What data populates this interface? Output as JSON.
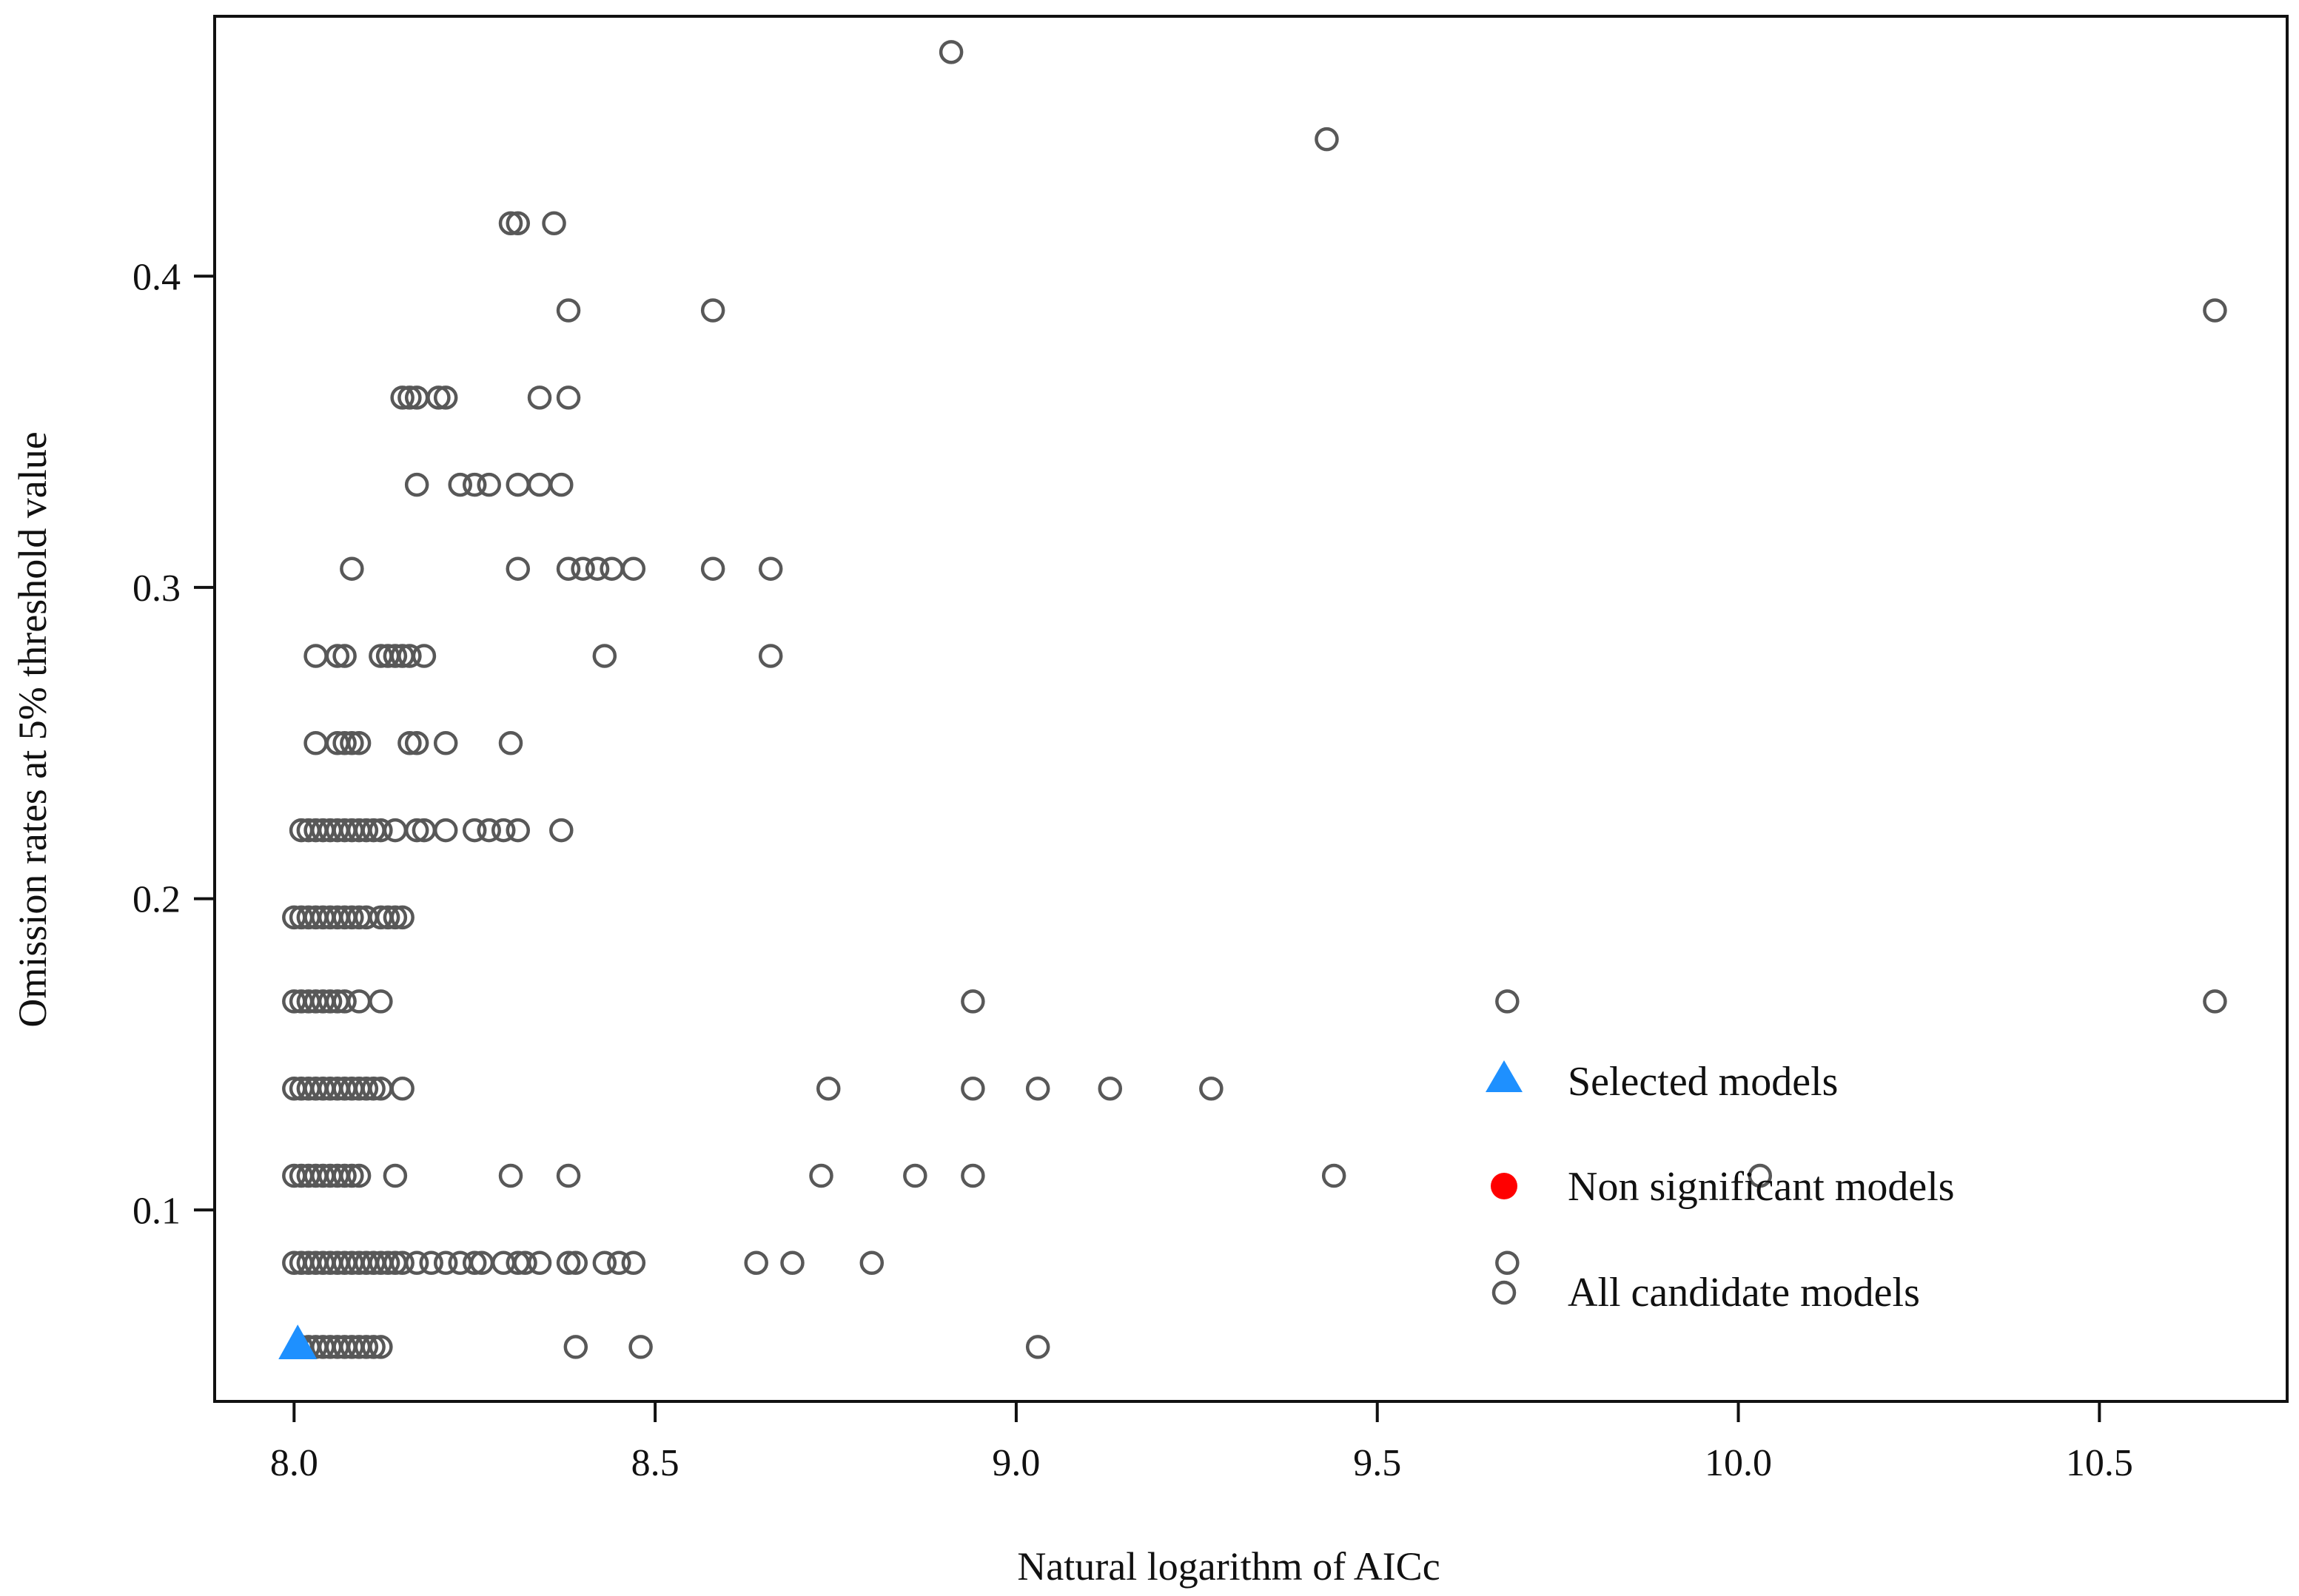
{
  "chart_data": {
    "type": "scatter",
    "title": "",
    "xlabel": "Natural logarithm of AICc",
    "ylabel": "Omission rates at 5% threshold value",
    "xlim": [
      7.89,
      10.76
    ],
    "ylim": [
      0.0385,
      0.4835
    ],
    "x_ticks": [
      {
        "value": 8.0,
        "label": "8.0"
      },
      {
        "value": 8.5,
        "label": "8.5"
      },
      {
        "value": 9.0,
        "label": "9.0"
      },
      {
        "value": 9.5,
        "label": "9.5"
      },
      {
        "value": 10.0,
        "label": "10.0"
      },
      {
        "value": 10.5,
        "label": "10.5"
      }
    ],
    "y_ticks": [
      {
        "value": 0.1,
        "label": "0.1"
      },
      {
        "value": 0.2,
        "label": "0.2"
      },
      {
        "value": 0.3,
        "label": "0.3"
      },
      {
        "value": 0.4,
        "label": "0.4"
      }
    ],
    "legend": {
      "position": "bottom-right",
      "entries": [
        {
          "label": "Selected models",
          "marker": "triangle",
          "color": "#1e90ff"
        },
        {
          "label": "Non significant models",
          "marker": "filled-circle",
          "color": "#ff0000"
        },
        {
          "label": "All candidate models",
          "marker": "open-circle",
          "color": "#585858"
        }
      ]
    },
    "colors": {
      "candidate": "#585858",
      "selected": "#1e90ff",
      "non_significant": "#ff0000"
    },
    "series": [
      {
        "name": "All candidate models",
        "marker": "open-circle",
        "points": [
          [
            8.91,
            0.472
          ],
          [
            9.43,
            0.444
          ],
          [
            8.3,
            0.417
          ],
          [
            8.31,
            0.417
          ],
          [
            8.36,
            0.417
          ],
          [
            8.38,
            0.389
          ],
          [
            8.58,
            0.389
          ],
          [
            10.66,
            0.389
          ],
          [
            8.15,
            0.361
          ],
          [
            8.16,
            0.361
          ],
          [
            8.17,
            0.361
          ],
          [
            8.2,
            0.361
          ],
          [
            8.21,
            0.361
          ],
          [
            8.34,
            0.361
          ],
          [
            8.38,
            0.361
          ],
          [
            8.17,
            0.333
          ],
          [
            8.23,
            0.333
          ],
          [
            8.25,
            0.333
          ],
          [
            8.27,
            0.333
          ],
          [
            8.31,
            0.333
          ],
          [
            8.34,
            0.333
          ],
          [
            8.37,
            0.333
          ],
          [
            8.08,
            0.306
          ],
          [
            8.31,
            0.306
          ],
          [
            8.38,
            0.306
          ],
          [
            8.4,
            0.306
          ],
          [
            8.42,
            0.306
          ],
          [
            8.44,
            0.306
          ],
          [
            8.47,
            0.306
          ],
          [
            8.58,
            0.306
          ],
          [
            8.66,
            0.306
          ],
          [
            8.03,
            0.278
          ],
          [
            8.06,
            0.278
          ],
          [
            8.07,
            0.278
          ],
          [
            8.12,
            0.278
          ],
          [
            8.13,
            0.278
          ],
          [
            8.14,
            0.278
          ],
          [
            8.15,
            0.278
          ],
          [
            8.16,
            0.278
          ],
          [
            8.18,
            0.278
          ],
          [
            8.43,
            0.278
          ],
          [
            8.66,
            0.278
          ],
          [
            8.03,
            0.25
          ],
          [
            8.06,
            0.25
          ],
          [
            8.07,
            0.25
          ],
          [
            8.08,
            0.25
          ],
          [
            8.09,
            0.25
          ],
          [
            8.16,
            0.25
          ],
          [
            8.17,
            0.25
          ],
          [
            8.21,
            0.25
          ],
          [
            8.3,
            0.25
          ],
          [
            8.01,
            0.222
          ],
          [
            8.02,
            0.222
          ],
          [
            8.03,
            0.222
          ],
          [
            8.04,
            0.222
          ],
          [
            8.05,
            0.222
          ],
          [
            8.06,
            0.222
          ],
          [
            8.07,
            0.222
          ],
          [
            8.08,
            0.222
          ],
          [
            8.09,
            0.222
          ],
          [
            8.1,
            0.222
          ],
          [
            8.11,
            0.222
          ],
          [
            8.12,
            0.222
          ],
          [
            8.14,
            0.222
          ],
          [
            8.17,
            0.222
          ],
          [
            8.18,
            0.222
          ],
          [
            8.21,
            0.222
          ],
          [
            8.25,
            0.222
          ],
          [
            8.27,
            0.222
          ],
          [
            8.29,
            0.222
          ],
          [
            8.31,
            0.222
          ],
          [
            8.37,
            0.222
          ],
          [
            8.0,
            0.194
          ],
          [
            8.01,
            0.194
          ],
          [
            8.02,
            0.194
          ],
          [
            8.03,
            0.194
          ],
          [
            8.04,
            0.194
          ],
          [
            8.05,
            0.194
          ],
          [
            8.06,
            0.194
          ],
          [
            8.07,
            0.194
          ],
          [
            8.08,
            0.194
          ],
          [
            8.09,
            0.194
          ],
          [
            8.1,
            0.194
          ],
          [
            8.12,
            0.194
          ],
          [
            8.13,
            0.194
          ],
          [
            8.14,
            0.194
          ],
          [
            8.15,
            0.194
          ],
          [
            8.0,
            0.167
          ],
          [
            8.01,
            0.167
          ],
          [
            8.02,
            0.167
          ],
          [
            8.03,
            0.167
          ],
          [
            8.04,
            0.167
          ],
          [
            8.05,
            0.167
          ],
          [
            8.06,
            0.167
          ],
          [
            8.07,
            0.167
          ],
          [
            8.09,
            0.167
          ],
          [
            8.12,
            0.167
          ],
          [
            8.94,
            0.167
          ],
          [
            9.68,
            0.167
          ],
          [
            10.66,
            0.167
          ],
          [
            8.0,
            0.139
          ],
          [
            8.01,
            0.139
          ],
          [
            8.02,
            0.139
          ],
          [
            8.03,
            0.139
          ],
          [
            8.04,
            0.139
          ],
          [
            8.05,
            0.139
          ],
          [
            8.06,
            0.139
          ],
          [
            8.07,
            0.139
          ],
          [
            8.08,
            0.139
          ],
          [
            8.09,
            0.139
          ],
          [
            8.1,
            0.139
          ],
          [
            8.11,
            0.139
          ],
          [
            8.12,
            0.139
          ],
          [
            8.15,
            0.139
          ],
          [
            8.74,
            0.139
          ],
          [
            8.94,
            0.139
          ],
          [
            9.03,
            0.139
          ],
          [
            9.13,
            0.139
          ],
          [
            9.27,
            0.139
          ],
          [
            8.0,
            0.111
          ],
          [
            8.01,
            0.111
          ],
          [
            8.02,
            0.111
          ],
          [
            8.03,
            0.111
          ],
          [
            8.04,
            0.111
          ],
          [
            8.05,
            0.111
          ],
          [
            8.06,
            0.111
          ],
          [
            8.07,
            0.111
          ],
          [
            8.08,
            0.111
          ],
          [
            8.09,
            0.111
          ],
          [
            8.14,
            0.111
          ],
          [
            8.3,
            0.111
          ],
          [
            8.38,
            0.111
          ],
          [
            8.73,
            0.111
          ],
          [
            8.86,
            0.111
          ],
          [
            8.94,
            0.111
          ],
          [
            9.44,
            0.111
          ],
          [
            10.03,
            0.111
          ],
          [
            8.0,
            0.083
          ],
          [
            8.01,
            0.083
          ],
          [
            8.02,
            0.083
          ],
          [
            8.03,
            0.083
          ],
          [
            8.04,
            0.083
          ],
          [
            8.05,
            0.083
          ],
          [
            8.06,
            0.083
          ],
          [
            8.07,
            0.083
          ],
          [
            8.08,
            0.083
          ],
          [
            8.09,
            0.083
          ],
          [
            8.1,
            0.083
          ],
          [
            8.11,
            0.083
          ],
          [
            8.12,
            0.083
          ],
          [
            8.13,
            0.083
          ],
          [
            8.14,
            0.083
          ],
          [
            8.15,
            0.083
          ],
          [
            8.17,
            0.083
          ],
          [
            8.19,
            0.083
          ],
          [
            8.21,
            0.083
          ],
          [
            8.23,
            0.083
          ],
          [
            8.25,
            0.083
          ],
          [
            8.26,
            0.083
          ],
          [
            8.29,
            0.083
          ],
          [
            8.31,
            0.083
          ],
          [
            8.32,
            0.083
          ],
          [
            8.34,
            0.083
          ],
          [
            8.38,
            0.083
          ],
          [
            8.39,
            0.083
          ],
          [
            8.43,
            0.083
          ],
          [
            8.45,
            0.083
          ],
          [
            8.47,
            0.083
          ],
          [
            8.64,
            0.083
          ],
          [
            8.69,
            0.083
          ],
          [
            8.8,
            0.083
          ],
          [
            9.68,
            0.083
          ],
          [
            8.01,
            0.056
          ],
          [
            8.02,
            0.056
          ],
          [
            8.03,
            0.056
          ],
          [
            8.04,
            0.056
          ],
          [
            8.05,
            0.056
          ],
          [
            8.06,
            0.056
          ],
          [
            8.07,
            0.056
          ],
          [
            8.08,
            0.056
          ],
          [
            8.09,
            0.056
          ],
          [
            8.1,
            0.056
          ],
          [
            8.11,
            0.056
          ],
          [
            8.12,
            0.056
          ],
          [
            8.39,
            0.056
          ],
          [
            8.48,
            0.056
          ],
          [
            9.03,
            0.056
          ]
        ]
      },
      {
        "name": "Selected models",
        "marker": "triangle",
        "points": [
          [
            8.005,
            0.057
          ]
        ]
      }
    ]
  }
}
